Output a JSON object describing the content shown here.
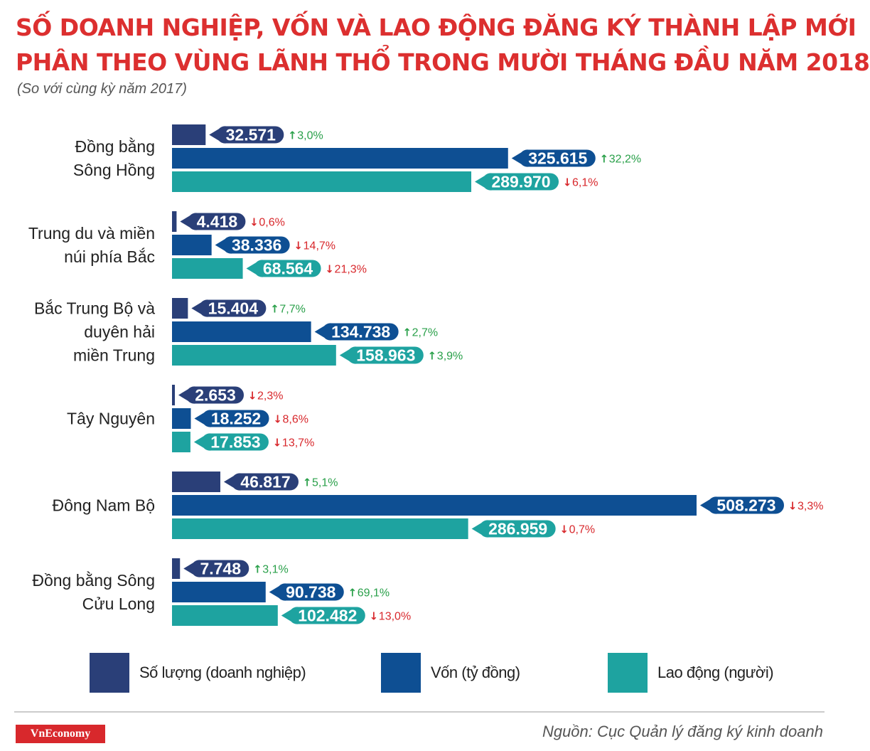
{
  "title": {
    "line1": "SỐ DOANH NGHIỆP, VỐN VÀ LAO ĐỘNG ĐĂNG KÝ THÀNH LẬP MỚI",
    "line2": "PHÂN THEO VÙNG LÃNH THỔ TRONG MƯỜI THÁNG ĐẦU NĂM 2018"
  },
  "subtitle": "(So với cùng kỳ năm 2017)",
  "colors": {
    "so_luong": "#2a3f78",
    "von": "#0e4f93",
    "lao_dong": "#1ea3a0",
    "up": "#2aa04a",
    "down": "#d8282c",
    "title_red": "#dc2f2f"
  },
  "chart_data": {
    "type": "bar",
    "orientation": "horizontal",
    "categories": [
      [
        "Đồng bằng",
        "Sông Hồng"
      ],
      [
        "Trung du và miền",
        "núi phía Bắc"
      ],
      [
        "Bắc Trung Bộ và",
        "duyên hải",
        "miền Trung"
      ],
      [
        "Tây Nguyên"
      ],
      [
        "Đông Nam Bộ"
      ],
      [
        "Đồng bằng Sông",
        "Cửu Long"
      ]
    ],
    "series": [
      {
        "name": "Số lượng (doanh nghiệp)",
        "values": [
          32571,
          4418,
          15404,
          2653,
          46817,
          7748
        ],
        "labels": [
          "32.571",
          "4.418",
          "15.404",
          "2.653",
          "46.817",
          "7.748"
        ],
        "changes": [
          "3,0%",
          "0,6%",
          "7,7%",
          "2,3%",
          "5,1%",
          "3,1%"
        ],
        "directions": [
          "up",
          "down",
          "up",
          "down",
          "up",
          "up"
        ]
      },
      {
        "name": "Vốn (tỷ đồng)",
        "values": [
          325615,
          38336,
          134738,
          18252,
          508273,
          90738
        ],
        "labels": [
          "325.615",
          "38.336",
          "134.738",
          "18.252",
          "508.273",
          "90.738"
        ],
        "changes": [
          "32,2%",
          "14,7%",
          "2,7%",
          "8,6%",
          "3,3%",
          "69,1%"
        ],
        "directions": [
          "up",
          "down",
          "up",
          "down",
          "down",
          "up"
        ]
      },
      {
        "name": "Lao động (người)",
        "values": [
          289970,
          68564,
          158963,
          17853,
          286959,
          102482
        ],
        "labels": [
          "289.970",
          "68.564",
          "158.963",
          "17.853",
          "286.959",
          "102.482"
        ],
        "changes": [
          "6,1%",
          "21,3%",
          "3,9%",
          "13,7%",
          "0,7%",
          "13,0%"
        ],
        "directions": [
          "down",
          "down",
          "up",
          "down",
          "down",
          "down"
        ]
      }
    ]
  },
  "legend": {
    "so_luong": "Số lượng (doanh nghiệp)",
    "von": "Vốn (tỷ đồng)",
    "lao_dong": "Lao động (người)"
  },
  "footer": {
    "logo": "VnEconomy",
    "source": "Nguồn: Cục Quản lý đăng ký kinh doanh"
  }
}
